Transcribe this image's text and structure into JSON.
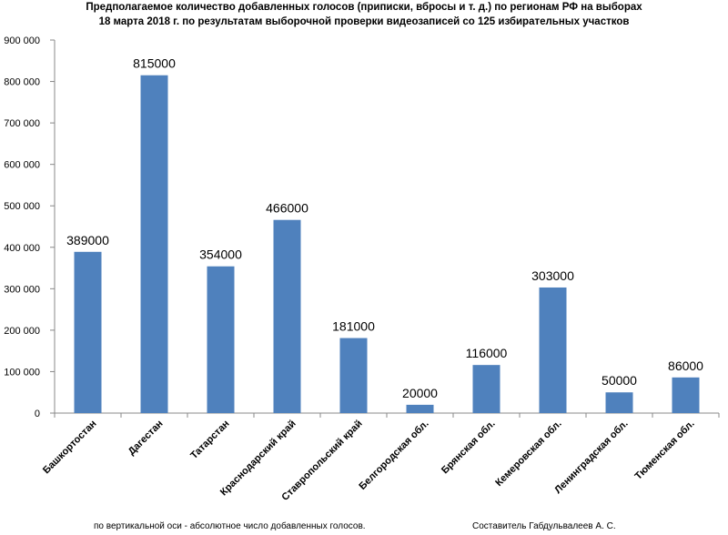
{
  "chart_data": {
    "type": "bar",
    "title": "Предполагаемое количество добавленных голосов (приписки, вбросы и т. д.) по регионам  РФ на выборах",
    "subtitle": "18 марта 2018 г. по результатам выборочной проверки видеозаписей со 125 избирательных участков",
    "categories": [
      "Башкортостан",
      "Дагестан",
      "Татарстан",
      "Краснодарский край",
      "Ставропольский край",
      "Белгородская обл.",
      "Брянская обл.",
      "Кемеровская обл.",
      "Ленинградская обл.",
      "Тюменская обл."
    ],
    "values": [
      389000,
      815000,
      354000,
      466000,
      181000,
      20000,
      116000,
      303000,
      50000,
      86000
    ],
    "data_labels": [
      "389000",
      "815000",
      "354000",
      "466000",
      "181000",
      "20000",
      "116000",
      "303000",
      "50000",
      "86000"
    ],
    "ylim": [
      0,
      900000
    ],
    "yticks": [
      0,
      100000,
      200000,
      300000,
      400000,
      500000,
      600000,
      700000,
      800000,
      900000
    ],
    "ytick_labels": [
      "0",
      "100 000",
      "200 000",
      "300 000",
      "400 000",
      "500 000",
      "600 000",
      "700 000",
      "800 000",
      "900 000"
    ],
    "xlabel": "",
    "ylabel": "",
    "grid": false,
    "legend": "none",
    "bar_color": "#4f81bd"
  },
  "footer": {
    "axis_note": "по вертикальной оси - абсолютное число добавленных голосов.",
    "author": "Составитель Габдульвалеев А. С."
  }
}
